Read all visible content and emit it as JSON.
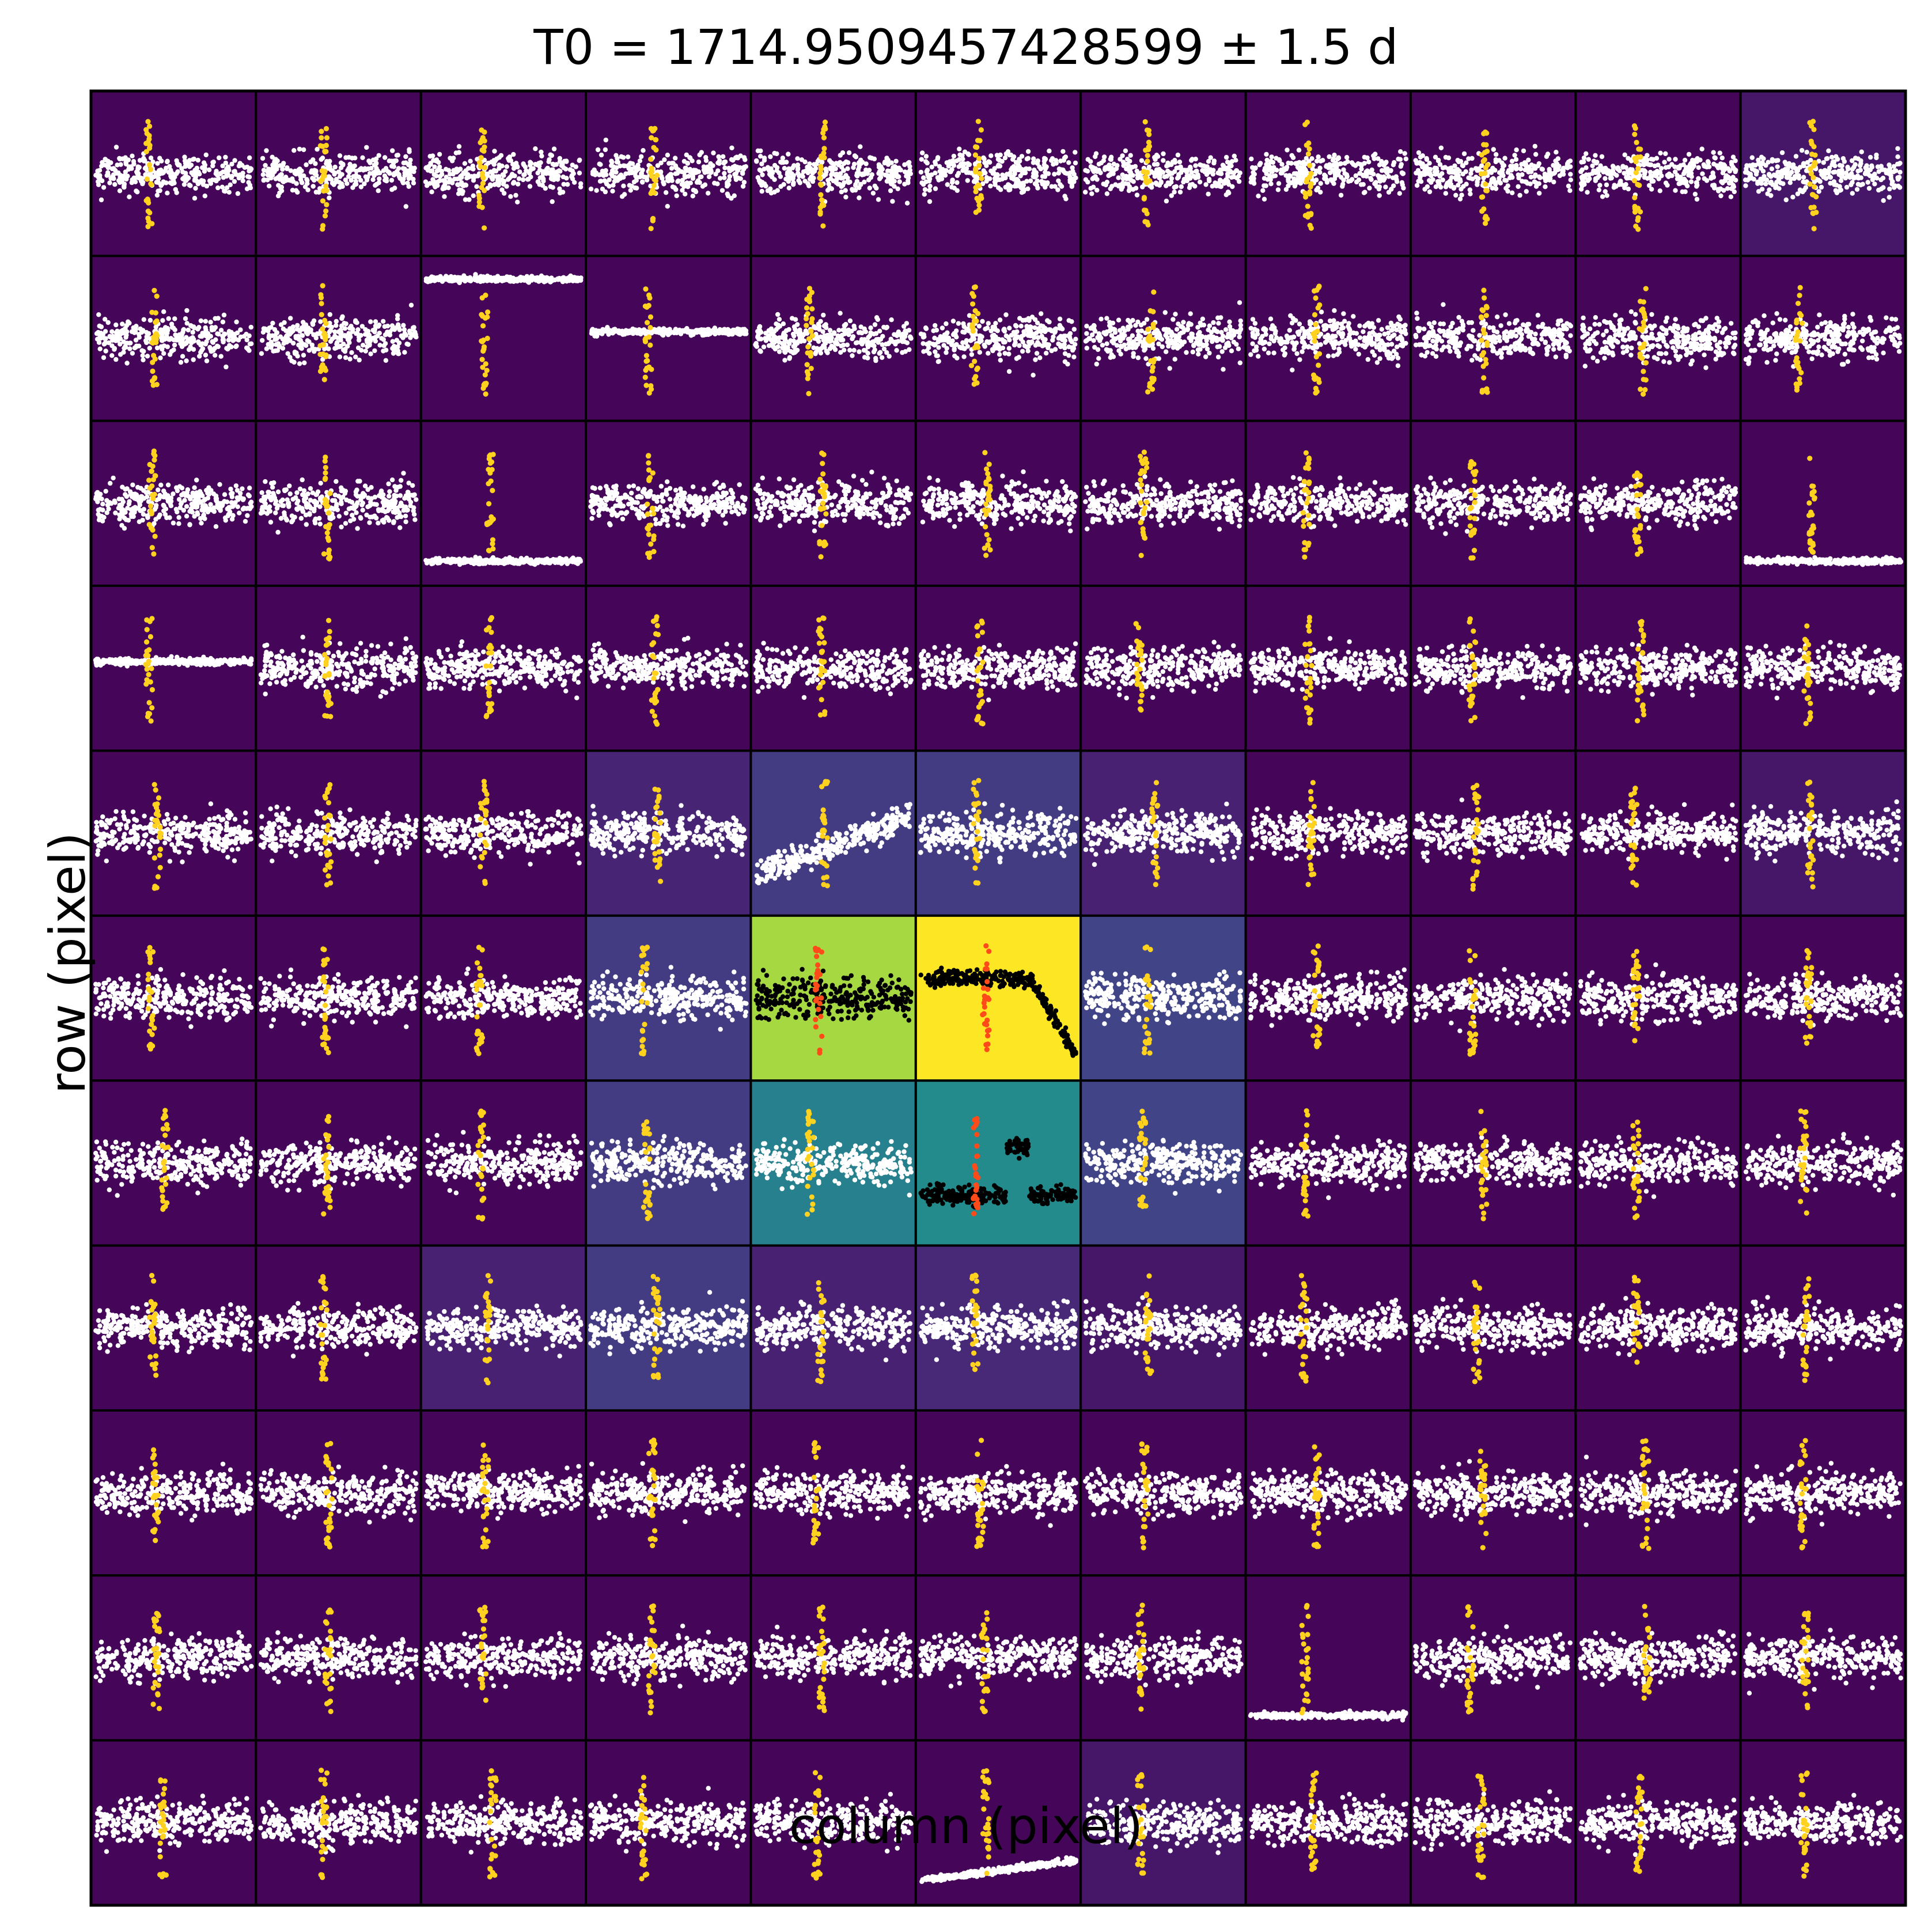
{
  "chart_data": {
    "type": "scatter",
    "title": "T0 = 1714.9509457428599 ± 1.5 d",
    "xlabel": "column (pixel)",
    "ylabel": "row (pixel)",
    "grid": {
      "rows": 11,
      "cols": 11
    },
    "colormap": "viridis",
    "transit_window_days": 1.5,
    "pixel_flux_level": [
      [
        0.02,
        0.02,
        0.02,
        0.02,
        0.02,
        0.02,
        0.02,
        0.02,
        0.02,
        0.02,
        0.08
      ],
      [
        0.02,
        0.02,
        0.02,
        0.02,
        0.02,
        0.02,
        0.02,
        0.02,
        0.02,
        0.02,
        0.02
      ],
      [
        0.02,
        0.02,
        0.02,
        0.02,
        0.02,
        0.02,
        0.02,
        0.02,
        0.02,
        0.02,
        0.02
      ],
      [
        0.02,
        0.02,
        0.02,
        0.02,
        0.02,
        0.02,
        0.02,
        0.02,
        0.02,
        0.02,
        0.02
      ],
      [
        0.02,
        0.02,
        0.02,
        0.13,
        0.22,
        0.22,
        0.12,
        0.02,
        0.02,
        0.02,
        0.08
      ],
      [
        0.02,
        0.02,
        0.02,
        0.22,
        0.92,
        1.0,
        0.25,
        0.02,
        0.02,
        0.02,
        0.02
      ],
      [
        0.02,
        0.02,
        0.02,
        0.22,
        0.54,
        0.6,
        0.25,
        0.02,
        0.02,
        0.02,
        0.02
      ],
      [
        0.02,
        0.02,
        0.12,
        0.22,
        0.12,
        0.15,
        0.08,
        0.02,
        0.02,
        0.02,
        0.02
      ],
      [
        0.02,
        0.02,
        0.02,
        0.02,
        0.02,
        0.02,
        0.02,
        0.02,
        0.02,
        0.02,
        0.02
      ],
      [
        0.02,
        0.02,
        0.02,
        0.02,
        0.02,
        0.02,
        0.02,
        0.02,
        0.02,
        0.02,
        0.02
      ],
      [
        0.02,
        0.02,
        0.02,
        0.02,
        0.02,
        0.02,
        0.08,
        0.02,
        0.02,
        0.02,
        0.02
      ]
    ],
    "aperture_pixels": [
      [
        5,
        4
      ],
      [
        5,
        5
      ],
      [
        6,
        5
      ]
    ],
    "pixel_trends": {
      "1,2": "high-flat",
      "1,3": "mid-flat",
      "2,2": "low-flat",
      "2,10": "low-flat",
      "3,0": "mid-flat",
      "9,7": "low-flat",
      "10,5": "low-rising",
      "4,4": "rising",
      "5,5": "drop-right",
      "6,5": "dip-rise"
    },
    "colors": {
      "background_points": "#ffffff",
      "aperture_points": "#000000",
      "transit_points_background": "#ffd21f",
      "transit_points_aperture": "#ff4a1a",
      "cell_border": "#000000"
    }
  }
}
